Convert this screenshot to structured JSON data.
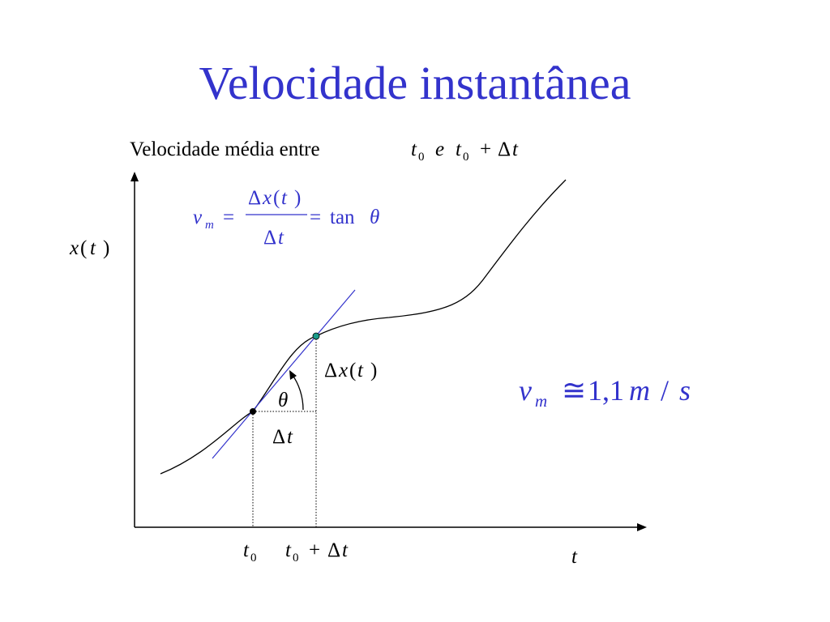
{
  "title": "Velocidade instantânea",
  "subtitle": {
    "label": "Velocidade média entre",
    "t0_var": "t",
    "t0_sub": "0",
    "conj": "e",
    "t1_var": "t",
    "t1_sub": "0",
    "plus": "+",
    "delta": "Δ",
    "dt_var": "t"
  },
  "formula": {
    "v": "v",
    "v_sub": "m",
    "eq1": "=",
    "num_delta": "Δ",
    "num_x": "x",
    "num_open": "(",
    "num_t": "t",
    "num_close": ")",
    "den_delta": "Δ",
    "den_t": "t",
    "eq2": "=",
    "tan": "tan",
    "theta": "θ"
  },
  "axes": {
    "y_label_x": "x",
    "y_label_open": "(",
    "y_label_t": "t",
    "y_label_close": ")",
    "x_label": "t"
  },
  "ticks": {
    "t0_var": "t",
    "t0_sub": "0",
    "t1_var": "t",
    "t1_sub": "0",
    "t1_plus": "+",
    "t1_delta": "Δ",
    "t1_t": "t"
  },
  "labels": {
    "dx_delta": "Δ",
    "dx_x": "x",
    "dx_open": "(",
    "dx_t": "t",
    "dx_close": ")",
    "dt_delta": "Δ",
    "dt_t": "t",
    "theta": "θ"
  },
  "result": {
    "v": "v",
    "v_sub": "m",
    "approx": "≅",
    "value": "1,1",
    "unit_m": "m",
    "slash": "/",
    "unit_s": "s"
  },
  "colors": {
    "title": "#3333cc",
    "formula": "#3333cc",
    "tangent": "#3333cc",
    "point_upper": "#1a9a8a",
    "point_lower": "#000000",
    "curve": "#000000"
  }
}
